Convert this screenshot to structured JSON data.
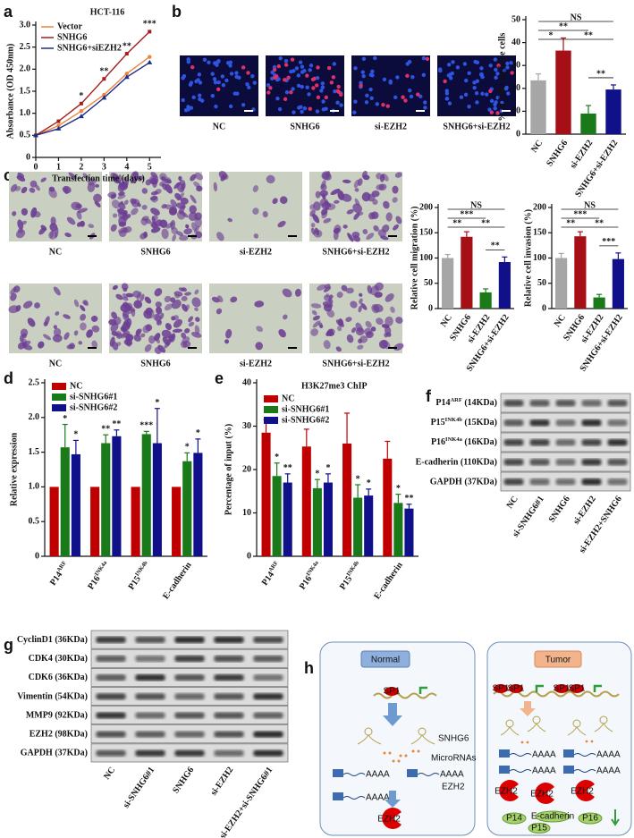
{
  "panel_labels": [
    "a",
    "b",
    "c",
    "d",
    "e",
    "f",
    "g",
    "h"
  ],
  "images": {
    "b": [
      "NC",
      "SNHG6",
      "si-EZH2",
      "SNHG6+si-EZH2"
    ],
    "c_top": [
      "NC",
      "SNHG6",
      "si-EZH2",
      "SNHG6+si-EZH2"
    ],
    "c_bottom": [
      "NC",
      "SNHG6",
      "si-EZH2",
      "SNHG6+si-EZH2"
    ]
  },
  "chart_data": [
    {
      "type": "line",
      "title": "HCT-116",
      "x": [
        0,
        1,
        2,
        3,
        4,
        5
      ],
      "xlim": [
        0,
        5.5
      ],
      "xticks": [
        0,
        1,
        2,
        3,
        4,
        5
      ],
      "ylim": [
        0,
        3
      ],
      "yticks": [
        0,
        0.5,
        {
          "value": 1,
          "label": "1.0"
        },
        1.5,
        {
          "value": 2,
          "label": "2.0"
        },
        2.5,
        {
          "value": 3,
          "label": "3.0"
        }
      ],
      "xlabel": "Transfection time (days)",
      "ylabel": "Absorbance (OD 450nm)",
      "legend": "upper left",
      "series": [
        {
          "name": "Vector",
          "color": "#e8873a",
          "values": [
            0.5,
            0.72,
            1.05,
            1.42,
            1.9,
            2.28
          ]
        },
        {
          "name": "SNHG6",
          "color": "#a51c1c",
          "values": [
            0.5,
            0.82,
            1.22,
            1.78,
            2.35,
            2.85
          ],
          "annotations": [
            null,
            null,
            "*",
            "**",
            "**",
            "***"
          ]
        },
        {
          "name": "SNHG6+siEZH2",
          "color": "#1c2c8c",
          "values": [
            0.5,
            0.65,
            0.93,
            1.35,
            1.82,
            2.15
          ]
        }
      ]
    },
    {
      "type": "bar",
      "categories": [
        "NC",
        "SNHG6",
        "si-EZH2",
        "SNHG6+si-EZH2"
      ],
      "values": [
        23.5,
        36.5,
        9,
        19.5
      ],
      "errors": [
        2.8,
        5.5,
        3.5,
        2
      ],
      "colors": [
        "#a6a6a6",
        "#a50f15",
        "#1a7a1a",
        "#10108a"
      ],
      "ylim": [
        0,
        50
      ],
      "yticks": [
        0,
        10,
        20,
        30,
        40,
        50
      ],
      "ylabel": "% of EdU positive cells",
      "significance": [
        "NS",
        "**",
        "*",
        "**",
        "**"
      ]
    },
    {
      "type": "bar",
      "categories": [
        "NC",
        "SNHG6",
        "si-EZH2",
        "SNHG6+si-EZH2"
      ],
      "values": [
        100,
        142,
        32,
        92
      ],
      "errors": [
        7,
        10,
        7,
        10
      ],
      "colors": [
        "#a6a6a6",
        "#a50f15",
        "#1a7a1a",
        "#10108a"
      ],
      "ylim": [
        0,
        200
      ],
      "yticks": [
        0,
        50,
        100,
        150,
        200
      ],
      "ylabel": "Relative cell migration (%)",
      "significance": [
        "NS",
        "***",
        "**",
        "**",
        "**"
      ]
    },
    {
      "type": "bar",
      "categories": [
        "NC",
        "SNHG6",
        "si-EZH2",
        "SNHG6+si-EZH2"
      ],
      "values": [
        100,
        143,
        22,
        98
      ],
      "errors": [
        9,
        9,
        6,
        12
      ],
      "colors": [
        "#a6a6a6",
        "#a50f15",
        "#1a7a1a",
        "#10108a"
      ],
      "ylim": [
        0,
        200
      ],
      "yticks": [
        0,
        50,
        100,
        150,
        200
      ],
      "ylabel": "Relative cell invasion (%)",
      "significance": [
        "NS",
        "***",
        "**",
        "**",
        "***"
      ]
    },
    {
      "type": "bar",
      "categories": [
        {
          "text": "P14",
          "sup": "ARF"
        },
        {
          "text": "P16",
          "sup": "INK4a"
        },
        {
          "text": "P15",
          "sup": "INK4b"
        },
        "E-cadherin"
      ],
      "ylim": [
        0,
        2.5
      ],
      "yticks": [
        0,
        0.5,
        {
          "value": 1,
          "label": "1.0"
        },
        1.5,
        {
          "value": 2,
          "label": "2.0"
        },
        2.5
      ],
      "ylabel": "Relative expression",
      "legend": "upper left",
      "series": [
        {
          "name": "NC",
          "color": "#c00000",
          "values": [
            1,
            1,
            1,
            1
          ]
        },
        {
          "name": "si-SNHG6#1",
          "color": "#1a7a1a",
          "values": [
            1.57,
            1.63,
            1.76,
            1.37
          ],
          "errors": [
            0.33,
            0.12,
            0.04,
            0.12
          ],
          "stars": [
            "*",
            "**",
            "***",
            "*"
          ]
        },
        {
          "name": "si-SNHG6#2",
          "color": "#10108a",
          "values": [
            1.47,
            1.73,
            1.63,
            1.49
          ],
          "errors": [
            0.2,
            0.09,
            0.5,
            0.2
          ],
          "stars": [
            "*",
            "**",
            "*",
            "*"
          ]
        }
      ]
    },
    {
      "type": "bar",
      "title": "H3K27me3 ChIP",
      "categories": [
        {
          "text": "P14",
          "sup": "ARF"
        },
        {
          "text": "P16",
          "sup": "INK4a"
        },
        {
          "text": "P15",
          "sup": "INK4b"
        },
        "E-cadherin"
      ],
      "ylim": [
        0,
        40
      ],
      "yticks": [
        0,
        10,
        20,
        30,
        40
      ],
      "ylabel": "Percentage of input (%)",
      "legend": "upper left",
      "series": [
        {
          "name": "NC",
          "color": "#c00000",
          "values": [
            28.5,
            25.3,
            26,
            22.5
          ],
          "errors": [
            3,
            4,
            7,
            4
          ]
        },
        {
          "name": "si-SNHG6#1",
          "color": "#1a7a1a",
          "values": [
            18.5,
            15.7,
            13.5,
            12.3
          ],
          "errors": [
            3,
            2,
            3,
            2
          ],
          "stars": [
            "*",
            "*",
            "*",
            "*"
          ]
        },
        {
          "name": "si-SNHG6#2",
          "color": "#10108a",
          "values": [
            17,
            17,
            14,
            11
          ],
          "errors": [
            2,
            2,
            1.5,
            1
          ],
          "stars": [
            "**",
            "*",
            "*",
            "**"
          ]
        }
      ]
    }
  ],
  "blots": {
    "f": {
      "rows": [
        {
          "text": "P14",
          "sup": "ARF",
          "rest": " (14KDa)"
        },
        {
          "text": "P15",
          "sup": "INK4b",
          "rest": " (15KDa)"
        },
        {
          "text": "P16",
          "sup": "INK4a",
          "rest": " (16KDa)"
        },
        "E-cadherin (110KDa)",
        "GAPDH (37KDa)"
      ],
      "lanes": [
        "NC",
        "si-SNHG6#1",
        "SNHG6",
        "si-EZH2",
        "si-EZH2+SNHG6"
      ]
    },
    "g": {
      "rows": [
        "CyclinD1 (36KDa)",
        "CDK4 (30KDa)",
        "CDK6 (36KDa)",
        "Vimentin (54KDa)",
        "MMP9 (92KDa)",
        "EZH2 (98KDa)",
        "GAPDH (37KDa)"
      ],
      "lanes": [
        "NC",
        "si-SNHG6#1",
        "SNHG6",
        "si-EZH2",
        "si-EZH2+si-SNHG6#1"
      ]
    }
  },
  "diagram": {
    "normal": {
      "title": "Normal",
      "sp1": "SP1",
      "rna": "SNHG6",
      "mirna": "MicroRNAs",
      "target": "EZH2",
      "protein": "EZH2",
      "polya": "AAAA"
    },
    "tumor": {
      "title": "Tumor",
      "sp1": "SP1",
      "protein": "EZH2",
      "polya": "AAAA",
      "genes": [
        "P14",
        "E-cadherin",
        "P16",
        "P15"
      ]
    }
  }
}
